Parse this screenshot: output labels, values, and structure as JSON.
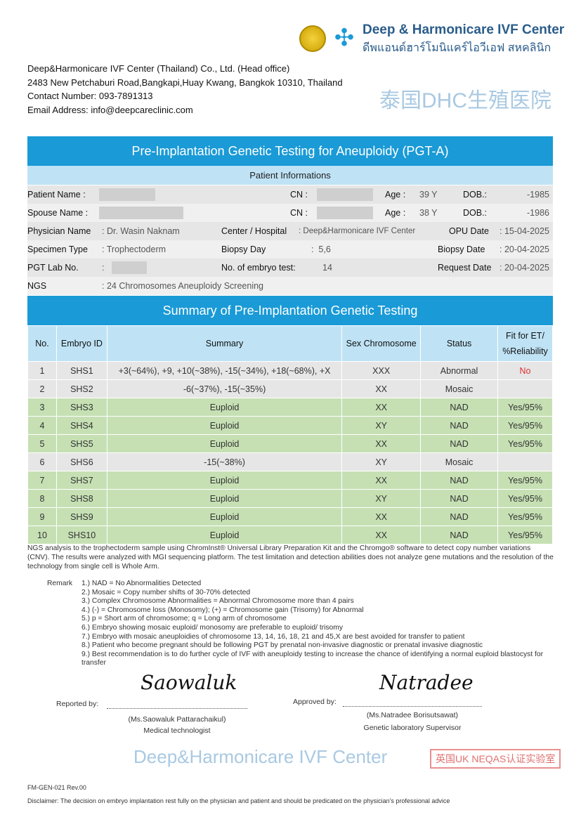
{
  "header": {
    "brand_en": "Deep & Harmonicare IVF Center",
    "brand_th": "ดีพแอนด์ฮาร์โมนิแคร์ไอวีเอฟ สหคลินิก",
    "address_lines": [
      "Deep&Harmonicare IVF Center (Thailand) Co., Ltd. (Head office)",
      "2483 New Petchaburi Road,Bangkapi,Huay Kwang, Bangkok 10310, Thailand",
      "Contact Number: 093-7891313",
      "Email Address: info@deepcareclinic.com"
    ]
  },
  "title": "Pre-Implantation Genetic Testing for Aneuploidy (PGT-A)",
  "patient_section": "Patient Informations",
  "info": {
    "patient_name_label": "Patient Name :",
    "cn_label": "CN :",
    "age_label": "Age :",
    "dob_label": "DOB.:",
    "patient_age": "39 Y",
    "patient_dob": "-1985",
    "spouse_name_label": "Spouse Name :",
    "spouse_age": "38 Y",
    "spouse_dob": "-1986",
    "physician_label": "Physician Name",
    "physician": "Dr. Wasin Naknam",
    "center_label": "Center / Hospital",
    "center": "Deep&Harmonicare IVF Center",
    "opu_label": "OPU Date",
    "opu": "15-04-2025",
    "specimen_label": "Specimen Type",
    "specimen": "Trophectoderm",
    "biopsy_day_label": "Biopsy Day",
    "biopsy_day": "5,6",
    "biopsy_date_label": "Biopsy Date",
    "biopsy_date": "20-04-2025",
    "lab_label": "PGT Lab No.",
    "embryo_count_label": "No. of embryo test:",
    "embryo_count": "14",
    "request_label": "Request Date",
    "request_date": "20-04-2025",
    "ngs_label": "NGS",
    "ngs": "24 Chromosomes Aneuploidy Screening"
  },
  "summary_title": "Summary of Pre-Implantation Genetic Testing",
  "table": {
    "headers": [
      "No.",
      "Embryo ID",
      "Summary",
      "Sex Chromosome",
      "Status",
      "Fit for ET/ %Reliability"
    ],
    "rows": [
      [
        "1",
        "SHS1",
        "+3(~64%), +9, +10(~38%), -15(~34%), +18(~68%), +X",
        "XXX",
        "Abnormal",
        "No"
      ],
      [
        "2",
        "SHS2",
        "-6(~37%), -15(~35%)",
        "XX",
        "Mosaic",
        ""
      ],
      [
        "3",
        "SHS3",
        "Euploid",
        "XX",
        "NAD",
        "Yes/95%"
      ],
      [
        "4",
        "SHS4",
        "Euploid",
        "XY",
        "NAD",
        "Yes/95%"
      ],
      [
        "5",
        "SHS5",
        "Euploid",
        "XX",
        "NAD",
        "Yes/95%"
      ],
      [
        "6",
        "SHS6",
        "-15(~38%)",
        "XY",
        "Mosaic",
        ""
      ],
      [
        "7",
        "SHS7",
        "Euploid",
        "XX",
        "NAD",
        "Yes/95%"
      ],
      [
        "8",
        "SHS8",
        "Euploid",
        "XY",
        "NAD",
        "Yes/95%"
      ],
      [
        "9",
        "SHS9",
        "Euploid",
        "XX",
        "NAD",
        "Yes/95%"
      ],
      [
        "10",
        "SHS10",
        "Euploid",
        "XX",
        "NAD",
        "Yes/95%"
      ]
    ]
  },
  "note": "NGS analysis to the trophectoderm sample using ChromInst® Universal Library Preparation Kit and the Chromgo® software to detect copy number variations (CNV). The results were analyzed with MGI sequencing platform. The test limitation and detection abilities does not analyze gene mutations and the resolution of the technology from single cell is Whole Arm.",
  "remark_label": "Remark",
  "remarks": [
    "1.) NAD = No Abnormalities Detected",
    "2.) Mosaic = Copy number shifts of 30-70% detected",
    "3.) Complex Chromosome Abnormalities = Abnormal Chromosome more than 4 pairs",
    "4.) (-) = Chromosome loss (Monosomy); (+) = Chromosome gain (Trisomy) for Abnormal",
    "5.) p = Short arm of chromosome; q = Long arm of chromosome",
    "6.) Embryo showing mosaic euploid/ monosomy are preferable to euploid/ trisomy",
    "7.) Embryo with mosaic aneuploidies of chromosome 13, 14, 16, 18, 21 and 45,X are best avoided for transfer to patient",
    "8.) Patient who become pregnant should be following PGT by prenatal non-invasive diagnostic or prenatal invasive diagnostic",
    "9.) Best recommendation is to do further cycle of IVF with aneuploidy testing to increase the chance of identifying a normal euploid blastocyst for transfer"
  ],
  "signatures": {
    "reported_label": "Reported by:",
    "reporter": "(Ms.Saowaluk Pattarachaikul)",
    "reporter_title": "Medical technologist",
    "reporter_sig": "Saowaluk",
    "approved_label": "Approved by:",
    "approver": "(Ms.Natradee Borisutsawat)",
    "approver_title": "Genetic laboratory Supervisor",
    "approver_sig": "Natradee"
  },
  "watermark": {
    "text1": "泰国DHC生殖医院",
    "text2": "Deep&Harmonicare IVF Center",
    "stamp": "英国UK NEQAS认证实验室"
  },
  "form_code": "FM-GEN-021 Rev.00",
  "disclaimer": "Disclaimer: The decision on embryo implantation rest fully on the physician and patient and should be predicated on the physician's professional advice",
  "colors": {
    "title_bar": "#1a9ad6",
    "header_light": "#bfe3f5",
    "euploid_row": "#c6e0b4",
    "other_row": "#e6e6e6",
    "no_text": "#e03030"
  }
}
